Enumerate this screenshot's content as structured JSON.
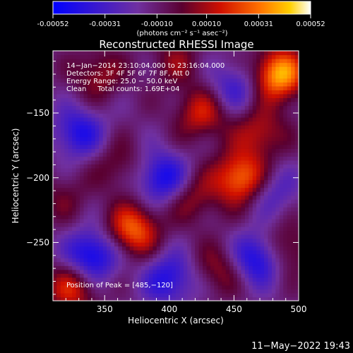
{
  "colorbar": {
    "ticks": [
      "-0.00052",
      "-0.00031",
      "-0.00010",
      "0.00010",
      "0.00031",
      "0.00052"
    ],
    "units": "(photons cm⁻² s⁻¹ asec⁻²)",
    "range": [
      -0.00052,
      0.00052
    ]
  },
  "chart_data": {
    "type": "heatmap",
    "title": "Reconstructed RHESSI Image",
    "xlabel": "Heliocentric X (arcsec)",
    "ylabel": "Heliocentric Y (arcsec)",
    "xlim": [
      310,
      500
    ],
    "ylim": [
      -295,
      -102
    ],
    "x_ticks": [
      350,
      400,
      450,
      500
    ],
    "y_ticks": [
      -150,
      -200,
      -250
    ],
    "x_tick_labels": [
      "350",
      "400",
      "450",
      "500"
    ],
    "y_tick_labels": [
      "−150",
      "−200",
      "−250"
    ],
    "info_lines": [
      "14−Jan−2014 23:10:04.000 to 23:16:04.000",
      "Detectors: 3F 4F 5F 6F 7F 8F, Att 0",
      "Energy Range: 25.0 − 50.0 keV",
      "Clean     Total counts: 1.69E+04"
    ],
    "peak_label": "Position of Peak = [485,−120]",
    "peak": [
      485,
      -120
    ],
    "value_range": [
      -0.00052,
      0.00052
    ],
    "blobs": [
      {
        "x": 485,
        "y": -120,
        "value": 0.00052
      },
      {
        "x": 455,
        "y": -200,
        "value": 0.00044
      },
      {
        "x": 425,
        "y": -150,
        "value": 0.00028
      },
      {
        "x": 470,
        "y": -165,
        "value": 0.00025
      },
      {
        "x": 418,
        "y": -215,
        "value": 0.0002
      },
      {
        "x": 372,
        "y": -240,
        "value": 0.0004
      },
      {
        "x": 325,
        "y": -285,
        "value": 0.0003
      },
      {
        "x": 345,
        "y": -120,
        "value": 0.0002
      },
      {
        "x": 360,
        "y": -190,
        "value": 0.00015
      },
      {
        "x": 440,
        "y": -270,
        "value": 0.0002
      },
      {
        "x": 490,
        "y": -255,
        "value": 0.00022
      },
      {
        "x": 405,
        "y": -110,
        "value": 0.00016
      },
      {
        "x": 318,
        "y": -215,
        "value": 0.00012
      },
      {
        "x": 340,
        "y": -260,
        "value": -0.0004
      },
      {
        "x": 395,
        "y": -200,
        "value": -0.00035
      },
      {
        "x": 468,
        "y": -262,
        "value": -0.00038
      },
      {
        "x": 330,
        "y": -165,
        "value": -0.0003
      },
      {
        "x": 400,
        "y": -278,
        "value": -0.0003
      },
      {
        "x": 450,
        "y": -130,
        "value": -0.00022
      },
      {
        "x": 480,
        "y": -210,
        "value": -0.00018
      }
    ]
  },
  "footer": {
    "timestamp": "11−May−2022 19:43"
  }
}
